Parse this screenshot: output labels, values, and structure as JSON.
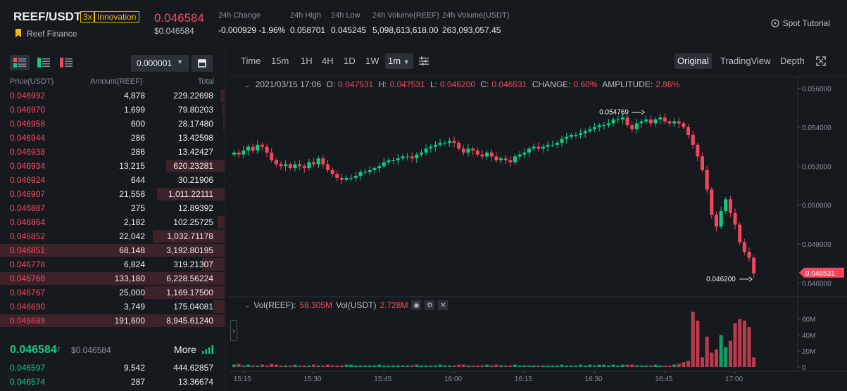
{
  "header": {
    "pair": "REEF/USDT",
    "leverage": "3x",
    "tag": "Innovation",
    "coin_name": "Reef Finance",
    "last_price": "0.046584",
    "last_price_usd": "$0.046584",
    "stats": [
      {
        "label": "24h Change",
        "value": "-0.000929 -1.96%",
        "color": "#f6465d"
      },
      {
        "label": "24h High",
        "value": "0.058701",
        "color": "#eaecef"
      },
      {
        "label": "24h Low",
        "value": "0.045245",
        "color": "#eaecef"
      },
      {
        "label": "24h Volume(REEF)",
        "value": "5,098,613,618.00",
        "color": "#eaecef"
      },
      {
        "label": "24h Volume(USDT)",
        "value": "263,093,057.45",
        "color": "#eaecef"
      }
    ],
    "tutorial": "Spot Tutorial"
  },
  "orderbook": {
    "tick": "0.000001",
    "columns": [
      "Price(USDT)",
      "Amount(REEF)",
      "Total"
    ],
    "asks": [
      {
        "price": "0.046992",
        "amount": "4,878",
        "total": "229.22698",
        "depth": 0.02
      },
      {
        "price": "0.046970",
        "amount": "1,699",
        "total": "79.80203",
        "depth": 0.01
      },
      {
        "price": "0.046958",
        "amount": "600",
        "total": "28.17480",
        "depth": 0.005
      },
      {
        "price": "0.046944",
        "amount": "286",
        "total": "13.42598",
        "depth": 0.0
      },
      {
        "price": "0.046938",
        "amount": "286",
        "total": "13.42427",
        "depth": 0.0
      },
      {
        "price": "0.046934",
        "amount": "13,215",
        "total": "620.23281",
        "depth": 0.26
      },
      {
        "price": "0.046924",
        "amount": "644",
        "total": "30.21906",
        "depth": 0.0
      },
      {
        "price": "0.046907",
        "amount": "21,558",
        "total": "1,011.22111",
        "depth": 0.3
      },
      {
        "price": "0.046887",
        "amount": "275",
        "total": "12.89392",
        "depth": 0.0
      },
      {
        "price": "0.046864",
        "amount": "2,182",
        "total": "102.25725",
        "depth": 0.03
      },
      {
        "price": "0.046852",
        "amount": "22,042",
        "total": "1,032.71178",
        "depth": 0.32
      },
      {
        "price": "0.046851",
        "amount": "68,148",
        "total": "3,192.80195",
        "depth": 1.0
      },
      {
        "price": "0.046778",
        "amount": "6,824",
        "total": "319.21307",
        "depth": 0.1
      },
      {
        "price": "0.046768",
        "amount": "133,180",
        "total": "6,228.56224",
        "depth": 1.0
      },
      {
        "price": "0.046767",
        "amount": "25,000",
        "total": "1,169.17500",
        "depth": 0.36
      },
      {
        "price": "0.046690",
        "amount": "3,749",
        "total": "175.04081",
        "depth": 0.05
      },
      {
        "price": "0.046689",
        "amount": "191,600",
        "total": "8,945.61240",
        "depth": 1.0
      }
    ],
    "mid_price": "0.046584",
    "mid_price_usd": "$0.046584",
    "more_label": "More",
    "bids": [
      {
        "price": "0.046597",
        "amount": "9,542",
        "total": "444.62857",
        "depth": 0.0
      },
      {
        "price": "0.046574",
        "amount": "287",
        "total": "13.36674",
        "depth": 0.0
      }
    ]
  },
  "chart_toolbar": {
    "timeframes": [
      "Time",
      "15m",
      "1H",
      "4H",
      "1D",
      "1W",
      "1m"
    ],
    "active_timeframe": "1m",
    "views": [
      "Original",
      "TradingView",
      "Depth"
    ],
    "active_view": "Original"
  },
  "chart_legend": {
    "date": "2021/03/15 17:06",
    "open_label": "O:",
    "open": "0.047531",
    "high_label": "H:",
    "high": "0.047531",
    "low_label": "L:",
    "low": "0.046200",
    "close_label": "C:",
    "close": "0.046531",
    "change_label": "CHANGE:",
    "change": "0.60%",
    "amplitude_label": "AMPLITUDE:",
    "amplitude": "2.86%"
  },
  "volume_legend": {
    "reef_label": "Vol(REEF):",
    "reef": "58.305M",
    "usdt_label": "Vol(USDT)",
    "usdt": "2.728M"
  },
  "chart_data": {
    "type": "candlestick",
    "x_ticks": [
      "15:15",
      "15:30",
      "15:45",
      "16:00",
      "16:15",
      "16:30",
      "16:45",
      "17:00"
    ],
    "y_ticks": [
      "0.046000",
      "0.048000",
      "0.050000",
      "0.052000",
      "0.054000",
      "0.056000"
    ],
    "ylim": [
      0.0458,
      0.0562
    ],
    "vol_ticks": [
      "0",
      "20M",
      "40M",
      "60M"
    ],
    "vol_lim": [
      0,
      72
    ],
    "high_marker": "0.054769",
    "low_marker": "0.046200",
    "current_price": "0.046531",
    "up_color": "#0ecb81",
    "down_color": "#f6465d",
    "closes": [
      0.0527,
      0.0526,
      0.0528,
      0.053,
      0.0528,
      0.0531,
      0.053,
      0.0527,
      0.0523,
      0.0521,
      0.052,
      0.0521,
      0.0519,
      0.0521,
      0.052,
      0.0519,
      0.0522,
      0.0521,
      0.0524,
      0.0521,
      0.0518,
      0.0516,
      0.0514,
      0.0513,
      0.0514,
      0.0514,
      0.0515,
      0.0517,
      0.0517,
      0.0518,
      0.0519,
      0.052,
      0.0522,
      0.0523,
      0.0523,
      0.0524,
      0.0525,
      0.0525,
      0.0524,
      0.0526,
      0.0527,
      0.0529,
      0.053,
      0.0531,
      0.0532,
      0.0532,
      0.0533,
      0.0532,
      0.0529,
      0.0527,
      0.0529,
      0.0528,
      0.0526,
      0.0525,
      0.0527,
      0.0525,
      0.0523,
      0.0524,
      0.0523,
      0.0522,
      0.0525,
      0.0526,
      0.0527,
      0.0529,
      0.053,
      0.0529,
      0.053,
      0.0531,
      0.0531,
      0.0532,
      0.0534,
      0.0535,
      0.0536,
      0.0536,
      0.0537,
      0.0538,
      0.0539,
      0.054,
      0.0541,
      0.0541,
      0.0542,
      0.0544,
      0.0544,
      0.0545,
      0.0541,
      0.0539,
      0.0542,
      0.0543,
      0.0544,
      0.0542,
      0.0544,
      0.0545,
      0.0543,
      0.0542,
      0.0543,
      0.0542,
      0.054,
      0.0536,
      0.0531,
      0.0525,
      0.0518,
      0.0508,
      0.0495,
      0.0489,
      0.0497,
      0.0503,
      0.0496,
      0.049,
      0.0481,
      0.0476,
      0.0473,
      0.0465
    ],
    "volumes": [
      3,
      4,
      2,
      3,
      2,
      2,
      3,
      2,
      4,
      3,
      2,
      2,
      2,
      3,
      2,
      2,
      2,
      3,
      2,
      2,
      3,
      2,
      2,
      2,
      3,
      3,
      2,
      2,
      2,
      2,
      2,
      3,
      2,
      2,
      2,
      2,
      2,
      2,
      2,
      3,
      2,
      2,
      2,
      2,
      3,
      2,
      2,
      2,
      3,
      3,
      2,
      2,
      2,
      2,
      3,
      2,
      3,
      2,
      2,
      2,
      3,
      2,
      2,
      2,
      2,
      2,
      2,
      2,
      2,
      2,
      3,
      2,
      2,
      2,
      3,
      2,
      3,
      2,
      3,
      3,
      2,
      3,
      2,
      3,
      3,
      3,
      2,
      2,
      2,
      2,
      3,
      2,
      2,
      2,
      3,
      4,
      6,
      8,
      69,
      58,
      12,
      38,
      18,
      22,
      40,
      25,
      33,
      55,
      60,
      58,
      50,
      12
    ]
  }
}
